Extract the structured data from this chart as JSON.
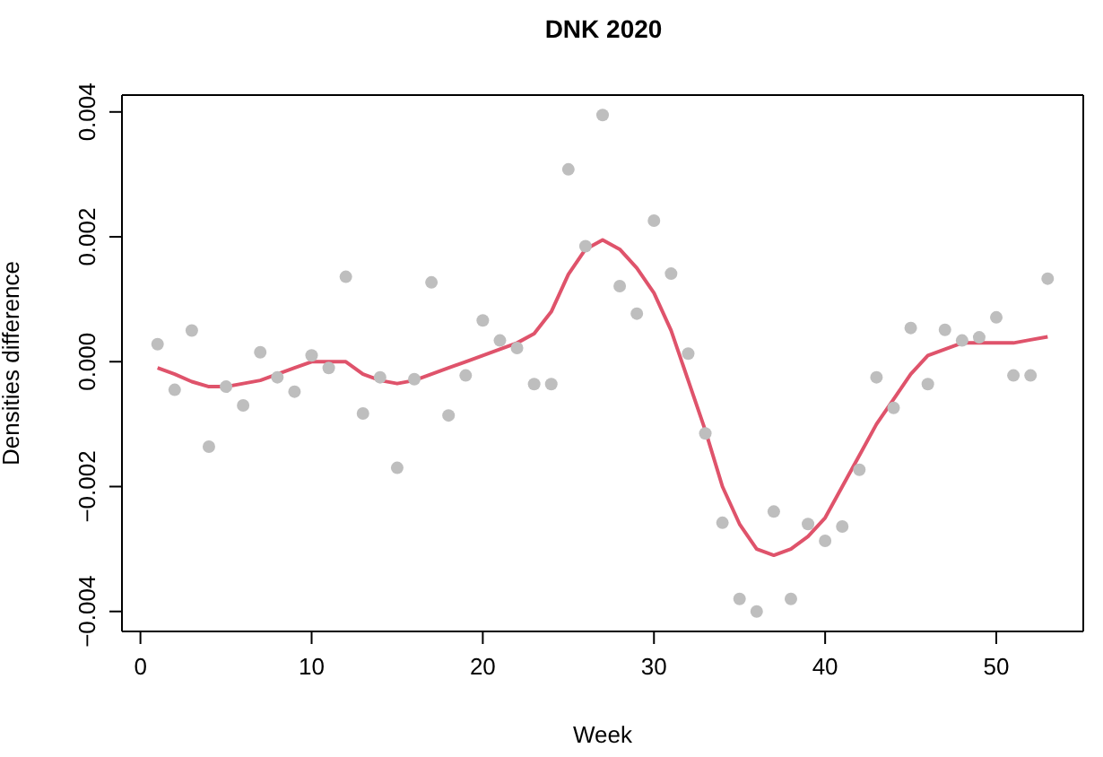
{
  "chart_data": {
    "type": "scatter",
    "title": "DNK 2020",
    "xlabel": "Week",
    "ylabel": "Densities difference",
    "x": [
      1,
      2,
      3,
      4,
      5,
      6,
      7,
      8,
      9,
      10,
      11,
      12,
      13,
      14,
      15,
      16,
      17,
      18,
      19,
      20,
      21,
      22,
      23,
      24,
      25,
      26,
      27,
      28,
      29,
      30,
      31,
      32,
      33,
      34,
      35,
      36,
      37,
      38,
      39,
      40,
      41,
      42,
      43,
      44,
      45,
      46,
      47,
      48,
      49,
      50,
      51,
      52,
      53
    ],
    "series": [
      {
        "color": "#bebebe",
        "marker": "circle",
        "values": [
          0.00028,
          -0.00045,
          0.0005,
          -0.00136,
          -0.0004,
          -0.0007,
          0.00015,
          -0.00025,
          -0.00048,
          0.0001,
          -0.0001,
          0.00136,
          -0.00083,
          -0.00025,
          -0.0017,
          -0.00028,
          0.00127,
          -0.00086,
          -0.00022,
          0.00066,
          0.00034,
          0.00022,
          -0.00036,
          -0.00036,
          0.00308,
          0.00185,
          0.00395,
          0.00121,
          0.00077,
          0.00226,
          0.00141,
          0.00013,
          -0.00115,
          -0.00258,
          -0.0038,
          -0.004,
          -0.0024,
          -0.0038,
          -0.0026,
          -0.00287,
          -0.00264,
          -0.00173,
          -0.00025,
          -0.00074,
          0.00054,
          -0.00036,
          0.00051,
          0.00034,
          0.00039,
          0.00071,
          -0.00022,
          -0.00022,
          0.00133
        ]
      },
      {
        "type": "line",
        "color": "#df536b",
        "marker": "none",
        "values": [
          -0.0001,
          -0.0002,
          -0.00032,
          -0.0004,
          -0.0004,
          -0.00035,
          -0.0003,
          -0.0002,
          -0.0001,
          0.0,
          0.0,
          0.0,
          -0.0002,
          -0.0003,
          -0.00035,
          -0.0003,
          -0.0002,
          -0.0001,
          0.0,
          0.0001,
          0.0002,
          0.0003,
          0.00045,
          0.0008,
          0.0014,
          0.0018,
          0.00195,
          0.0018,
          0.0015,
          0.0011,
          0.0005,
          -0.0003,
          -0.0011,
          -0.002,
          -0.0026,
          -0.003,
          -0.0031,
          -0.003,
          -0.0028,
          -0.0025,
          -0.002,
          -0.0015,
          -0.001,
          -0.0006,
          -0.0002,
          0.0001,
          0.0002,
          0.0003,
          0.0003,
          0.0003,
          0.0003,
          0.00035,
          0.0004
        ]
      }
    ],
    "xlim": [
      -1.08,
      55.08
    ],
    "xticks": [
      0,
      10,
      20,
      30,
      40,
      50
    ],
    "ylim": [
      -0.00432,
      0.00427
    ],
    "yticks": [
      {
        "value": -0.004,
        "label": "−0.004"
      },
      {
        "value": -0.002,
        "label": "−0.002"
      },
      {
        "value": 0,
        "label": "0.000"
      },
      {
        "value": 0.002,
        "label": "0.002"
      },
      {
        "value": 0.004,
        "label": "0.004"
      }
    ],
    "grid": false
  }
}
